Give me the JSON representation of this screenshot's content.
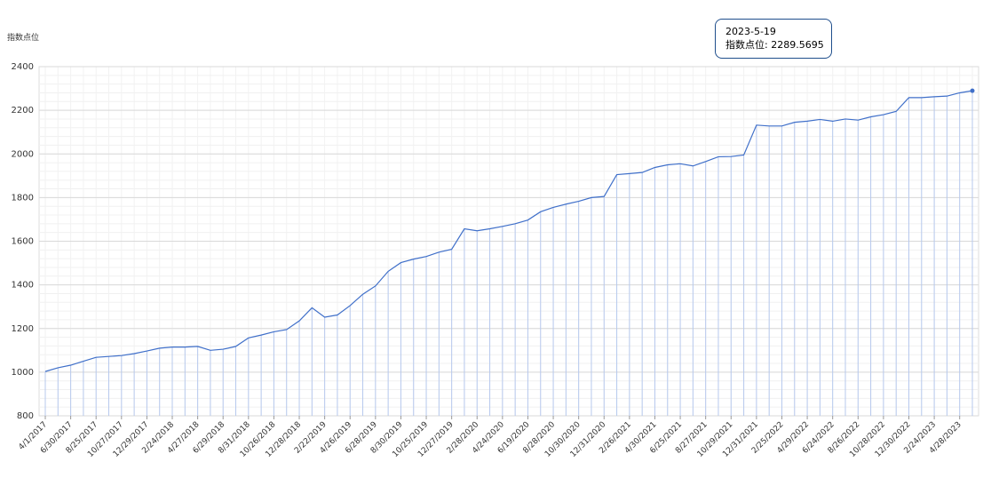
{
  "chart_data": {
    "type": "line",
    "y_label": "指数点位",
    "categories": [
      "4/1/2017",
      null,
      "6/30/2017",
      null,
      "8/25/2017",
      null,
      "10/27/2017",
      null,
      "12/29/2017",
      null,
      "2/24/2018",
      null,
      "4/27/2018",
      null,
      "6/29/2018",
      null,
      "8/31/2018",
      null,
      "10/26/2018",
      null,
      "12/28/2018",
      null,
      "2/22/2019",
      null,
      "4/26/2019",
      null,
      "6/28/2019",
      null,
      "8/30/2019",
      null,
      "10/25/2019",
      null,
      "12/27/2019",
      null,
      "2/28/2020",
      null,
      "4/24/2020",
      null,
      "6/19/2020",
      null,
      "8/28/2020",
      null,
      "10/30/2020",
      null,
      "12/31/2020",
      null,
      "2/26/2021",
      null,
      "4/30/2021",
      null,
      "6/25/2021",
      null,
      "8/27/2021",
      null,
      "10/29/2021",
      null,
      "12/31/2021",
      null,
      "2/25/2022",
      null,
      "4/29/2022",
      null,
      "6/24/2022",
      null,
      "8/26/2022",
      null,
      "10/28/2022",
      null,
      "12/30/2022",
      null,
      "2/24/2023",
      null,
      "4/28/2023",
      null
    ],
    "series": [
      {
        "name": "指数点位",
        "color": "#3f6fc9",
        "values": [
          1003,
          1020,
          1032,
          1050,
          1068,
          1072,
          1076,
          1085,
          1097,
          1110,
          1115,
          1115,
          1118,
          1100,
          1105,
          1118,
          1157,
          1170,
          1185,
          1195,
          1235,
          1295,
          1252,
          1262,
          1305,
          1357,
          1395,
          1462,
          1502,
          1518,
          1530,
          1550,
          1563,
          1657,
          1648,
          1657,
          1668,
          1680,
          1697,
          1735,
          1755,
          1770,
          1783,
          1800,
          1805,
          1905,
          1910,
          1915,
          1938,
          1950,
          1955,
          1945,
          1965,
          1987,
          1988,
          1995,
          2132,
          2128,
          2128,
          2145,
          2150,
          2158,
          2150,
          2160,
          2155,
          2170,
          2180,
          2195,
          2258,
          2258,
          2262,
          2265,
          2280,
          2289.5695
        ]
      }
    ],
    "ylim": [
      800,
      2400
    ],
    "yticks": [
      800,
      1000,
      1200,
      1400,
      1600,
      1800,
      2000,
      2200,
      2400
    ],
    "grid": true,
    "tooltip": {
      "date": "2023-5-19",
      "text": "指数点位: 2289.5695"
    }
  }
}
